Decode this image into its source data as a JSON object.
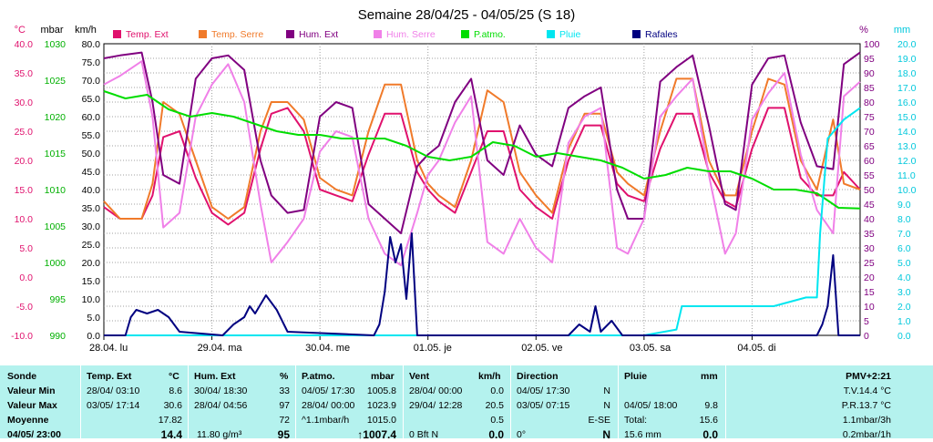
{
  "chart_data": {
    "type": "line",
    "title": "Semaine 28/04/25 - 04/05/25 (S 18)",
    "axes": {
      "temp": {
        "label": "°C",
        "ticks": [
          "40.0",
          "35.0",
          "30.0",
          "25.0",
          "20.0",
          "15.0",
          "10.0",
          "5.0",
          "0.0",
          "-5.0",
          "-10.0"
        ],
        "range": [
          -10,
          40
        ],
        "color": "#e0116d"
      },
      "pressure": {
        "label": "mbar",
        "ticks": [
          "1030",
          "1025",
          "1020",
          "1015",
          "1010",
          "1005",
          "1000",
          "995",
          "990"
        ],
        "range": [
          990,
          1030
        ],
        "color": "#00b000"
      },
      "wind": {
        "label": "km/h",
        "ticks": [
          "80.0",
          "75.0",
          "70.0",
          "65.0",
          "60.0",
          "55.0",
          "50.0",
          "45.0",
          "40.0",
          "35.0",
          "30.0",
          "25.0",
          "20.0",
          "15.0",
          "10.0",
          "5.0",
          "0.0"
        ],
        "range": [
          0,
          80
        ],
        "color": "#000"
      },
      "humidity": {
        "label": "%",
        "ticks": [
          "100",
          "95",
          "90",
          "85",
          "80",
          "75",
          "70",
          "65",
          "60",
          "55",
          "50",
          "45",
          "40",
          "35",
          "30",
          "25",
          "20",
          "15",
          "10",
          "5",
          "0"
        ],
        "range": [
          0,
          100
        ],
        "color": "#800080"
      },
      "rain": {
        "label": "mm",
        "ticks": [
          "20.0",
          "19.0",
          "18.0",
          "17.0",
          "16.0",
          "15.0",
          "14.0",
          "13.0",
          "12.0",
          "11.0",
          "10.0",
          "9.0",
          "8.0",
          "7.0",
          "6.0",
          "5.0",
          "4.0",
          "3.0",
          "2.0",
          "1.0",
          "0.0"
        ],
        "range": [
          0,
          20
        ],
        "color": "#00c8dc"
      }
    },
    "x_labels": [
      "28.04. lu",
      "29.04. ma",
      "30.04. me",
      "01.05. je",
      "02.05. ve",
      "03.05. sa",
      "04.05. di"
    ],
    "x_range": [
      0,
      7
    ],
    "grid": true,
    "series": [
      {
        "name": "Temp. Ext",
        "color": "#e0116d",
        "axis": "temp",
        "x": [
          0,
          0.15,
          0.35,
          0.45,
          0.55,
          0.7,
          0.85,
          1.0,
          1.15,
          1.3,
          1.45,
          1.55,
          1.7,
          1.85,
          2.0,
          2.15,
          2.3,
          2.45,
          2.6,
          2.75,
          2.9,
          3.0,
          3.1,
          3.25,
          3.4,
          3.55,
          3.7,
          3.85,
          4.0,
          4.15,
          4.3,
          4.45,
          4.6,
          4.75,
          4.85,
          5.0,
          5.15,
          5.3,
          5.45,
          5.6,
          5.75,
          5.85,
          6.0,
          6.15,
          6.3,
          6.45,
          6.6,
          6.75,
          6.85,
          7.0
        ],
        "y": [
          12,
          10,
          10,
          14,
          24,
          25,
          17,
          11,
          9,
          11,
          22,
          28,
          29,
          25,
          15,
          14,
          13,
          21,
          28,
          28,
          18,
          15,
          13,
          11,
          18,
          25,
          25,
          15,
          12,
          10,
          20,
          26,
          26,
          16,
          14,
          13,
          22,
          28,
          28,
          18,
          13,
          12,
          22,
          29,
          29,
          17,
          14,
          14,
          18,
          15
        ]
      },
      {
        "name": "Temp. Serre",
        "color": "#f07a2a",
        "axis": "temp",
        "x": [
          0,
          0.15,
          0.35,
          0.45,
          0.55,
          0.7,
          0.85,
          1.0,
          1.15,
          1.3,
          1.45,
          1.55,
          1.7,
          1.85,
          2.0,
          2.15,
          2.3,
          2.45,
          2.6,
          2.75,
          2.9,
          3.0,
          3.1,
          3.25,
          3.4,
          3.55,
          3.7,
          3.85,
          4.0,
          4.15,
          4.3,
          4.45,
          4.6,
          4.75,
          4.85,
          5.0,
          5.15,
          5.3,
          5.45,
          5.6,
          5.75,
          5.85,
          6.0,
          6.15,
          6.3,
          6.45,
          6.6,
          6.75,
          6.85,
          7.0
        ],
        "y": [
          13,
          10,
          10,
          16,
          30,
          28,
          20,
          12,
          10,
          12,
          25,
          30,
          30,
          27,
          17,
          15,
          14,
          25,
          33,
          33,
          20,
          16,
          14,
          12,
          20,
          32,
          30,
          18,
          14,
          11,
          22,
          28,
          28,
          18,
          16,
          14,
          25,
          34,
          34,
          20,
          14,
          14,
          25,
          34,
          33,
          20,
          15,
          27,
          16,
          15
        ]
      },
      {
        "name": "Hum. Ext",
        "color": "#800080",
        "axis": "humidity",
        "x": [
          0,
          0.15,
          0.35,
          0.45,
          0.55,
          0.7,
          0.85,
          1.0,
          1.15,
          1.3,
          1.45,
          1.55,
          1.7,
          1.85,
          2.0,
          2.15,
          2.3,
          2.45,
          2.6,
          2.75,
          2.9,
          3.0,
          3.1,
          3.25,
          3.4,
          3.55,
          3.7,
          3.85,
          4.0,
          4.15,
          4.3,
          4.45,
          4.6,
          4.75,
          4.85,
          5.0,
          5.15,
          5.3,
          5.45,
          5.6,
          5.75,
          5.85,
          6.0,
          6.15,
          6.3,
          6.45,
          6.6,
          6.75,
          6.85,
          7.0
        ],
        "y": [
          95,
          96,
          97,
          80,
          55,
          52,
          88,
          95,
          96,
          91,
          60,
          48,
          42,
          43,
          75,
          80,
          78,
          45,
          40,
          35,
          58,
          62,
          65,
          80,
          88,
          60,
          55,
          72,
          62,
          58,
          78,
          82,
          85,
          50,
          40,
          40,
          87,
          92,
          96,
          72,
          45,
          43,
          86,
          95,
          96,
          73,
          58,
          57,
          93,
          97
        ]
      },
      {
        "name": "Hum. Serre",
        "color": "#f080e8",
        "axis": "humidity",
        "x": [
          0,
          0.15,
          0.35,
          0.45,
          0.55,
          0.7,
          0.85,
          1.0,
          1.15,
          1.3,
          1.45,
          1.55,
          1.7,
          1.85,
          2.0,
          2.15,
          2.3,
          2.45,
          2.6,
          2.75,
          2.9,
          3.0,
          3.1,
          3.25,
          3.4,
          3.55,
          3.7,
          3.85,
          4.0,
          4.15,
          4.3,
          4.45,
          4.6,
          4.75,
          4.85,
          5.0,
          5.15,
          5.3,
          5.45,
          5.6,
          5.75,
          5.85,
          6.0,
          6.15,
          6.3,
          6.45,
          6.6,
          6.75,
          6.85,
          7.0
        ],
        "y": [
          86,
          89,
          94,
          75,
          37,
          42,
          75,
          86,
          93,
          80,
          45,
          25,
          32,
          40,
          63,
          70,
          68,
          40,
          28,
          24,
          42,
          55,
          60,
          73,
          82,
          32,
          28,
          40,
          30,
          25,
          66,
          75,
          78,
          30,
          28,
          40,
          75,
          82,
          88,
          55,
          28,
          35,
          74,
          83,
          90,
          62,
          43,
          35,
          82,
          87
        ]
      },
      {
        "name": "P.atmo.",
        "color": "#00dd00",
        "axis": "pressure",
        "x": [
          0,
          0.2,
          0.4,
          0.6,
          0.8,
          1.0,
          1.2,
          1.4,
          1.6,
          1.8,
          2.0,
          2.2,
          2.4,
          2.6,
          2.8,
          3.0,
          3.2,
          3.4,
          3.6,
          3.8,
          4.0,
          4.2,
          4.4,
          4.6,
          4.8,
          5.0,
          5.2,
          5.4,
          5.6,
          5.8,
          6.0,
          6.2,
          6.4,
          6.6,
          6.8,
          7.0
        ],
        "y": [
          1023.5,
          1022.5,
          1023,
          1021,
          1020,
          1020.5,
          1020,
          1019,
          1018,
          1017.5,
          1017.5,
          1017,
          1017,
          1017,
          1016,
          1014.5,
          1014,
          1014.5,
          1016.5,
          1016,
          1014.5,
          1015,
          1014.5,
          1014,
          1013,
          1011.5,
          1012,
          1013,
          1012.5,
          1012.5,
          1011.5,
          1010,
          1010,
          1009.5,
          1007.5,
          1007.4
        ]
      },
      {
        "name": "Pluie",
        "color": "#00e6f0",
        "axis": "rain",
        "x": [
          0,
          5.0,
          5.3,
          5.35,
          6.2,
          6.5,
          6.6,
          6.63,
          6.7,
          6.85,
          7.0
        ],
        "y": [
          0,
          0,
          0.4,
          2.0,
          2.0,
          2.6,
          2.6,
          7.0,
          13.5,
          14.8,
          15.6
        ]
      },
      {
        "name": "Rafales",
        "color": "#000080",
        "axis": "wind",
        "x": [
          0,
          0.2,
          0.25,
          0.3,
          0.4,
          0.5,
          0.6,
          0.7,
          1.1,
          1.2,
          1.3,
          1.35,
          1.4,
          1.5,
          1.6,
          1.7,
          2.5,
          2.55,
          2.6,
          2.65,
          2.7,
          2.75,
          2.8,
          2.85,
          2.9,
          3.0,
          3.1,
          4.3,
          4.4,
          4.5,
          4.55,
          4.6,
          4.7,
          4.8,
          6.6,
          6.65,
          6.7,
          6.75,
          6.8,
          7.0
        ],
        "y": [
          0,
          0,
          5,
          7,
          6,
          7,
          5,
          1,
          0,
          3,
          5,
          8,
          6,
          11,
          7,
          1,
          0,
          3,
          12,
          27,
          20,
          25,
          10,
          28,
          0,
          0,
          0,
          0,
          3,
          1,
          8,
          1,
          4,
          0,
          0,
          3,
          8,
          22,
          0,
          0
        ]
      }
    ]
  },
  "stats": {
    "header": {
      "sonde": "Sonde",
      "temp_ext": "Temp. Ext",
      "temp_unit": "°C",
      "hum_ext": "Hum. Ext",
      "hum_unit": "%",
      "patmo": "P.atmo.",
      "patmo_unit": "mbar",
      "vent": "Vent",
      "vent_unit": "km/h",
      "direction": "Direction",
      "pluie": "Pluie",
      "pluie_unit": "mm",
      "pmv": "PMV+2:21"
    },
    "labels": [
      "Valeur Min",
      "Valeur Max",
      "Moyenne",
      "04/05/ 23:00"
    ],
    "temp": {
      "min_time": "28/04/ 03:10",
      "min": "8.6",
      "max_time": "03/05/ 17:14",
      "max": "30.6",
      "avg": "17.82",
      "current": "14.4"
    },
    "hum": {
      "min_time": "30/04/ 18:30",
      "min": "33",
      "max_time": "28/04/ 04:56",
      "max": "97",
      "avg": "72",
      "current_extra": "11.80 g/m³",
      "current": "95"
    },
    "patmo": {
      "min_time": "04/05/ 17:30",
      "min": "1005.8",
      "max_time": "28/04/ 00:00",
      "max": "1023.9",
      "avg_extra": "^1.1mbar/h",
      "avg": "1015.0",
      "current": "↑1007.4"
    },
    "vent": {
      "min_time": "28/04/ 00:00",
      "min": "0.0",
      "max_time": "29/04/ 12:28",
      "max": "20.5",
      "avg": "0.5",
      "current_extra": "0 Bft N",
      "current": "0.0"
    },
    "direction": {
      "min_time": "04/05/ 17:30",
      "min": "N",
      "max_time": "03/05/ 07:15",
      "max": "N",
      "avg": "E-SE",
      "current_extra": "0°",
      "current": "N"
    },
    "pluie": {
      "max_time": "04/05/ 18:00",
      "max": "9.8",
      "total_label": "Total:",
      "total": "15.6",
      "current_extra": "15.6 mm",
      "current": "0.0"
    },
    "pmv": {
      "tv": "T.V.14.4 °C",
      "pr": "P.R.13.7 °C",
      "r3h": "1.1mbar/3h",
      "r1h": "0.2mbar/1h"
    }
  }
}
